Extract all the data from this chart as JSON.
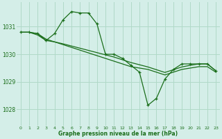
{
  "title": "Graphe pression niveau de la mer (hPa)",
  "background_color": "#d4eee8",
  "grid_color": "#b0d9c8",
  "line_color": "#1a6e1a",
  "x_ticks": [
    0,
    1,
    2,
    3,
    4,
    5,
    6,
    7,
    8,
    9,
    10,
    11,
    12,
    13,
    14,
    15,
    16,
    17,
    18,
    19,
    20,
    21,
    22,
    23
  ],
  "y_ticks": [
    1028,
    1029,
    1030,
    1031
  ],
  "ylim": [
    1027.4,
    1031.9
  ],
  "xlim": [
    -0.5,
    23.5
  ],
  "series_main": [
    1030.8,
    1030.8,
    1030.75,
    1030.5,
    1030.75,
    1031.25,
    1031.55,
    1031.5,
    1031.5,
    1031.1,
    1030.0,
    1030.0,
    1029.85,
    1029.6,
    1029.35,
    1028.15,
    1028.4,
    1029.1,
    1029.45,
    1029.65,
    1029.65,
    1029.65,
    1029.65,
    1029.4
  ],
  "series_smooth1": [
    1030.8,
    1030.8,
    1030.75,
    1030.55,
    1030.45,
    1030.35,
    1030.25,
    1030.15,
    1030.05,
    1029.95,
    1029.85,
    1029.75,
    1029.65,
    1029.55,
    1029.5,
    1029.45,
    1029.35,
    1029.25,
    1029.35,
    1029.45,
    1029.5,
    1029.55,
    1029.55,
    1029.35
  ],
  "series_smooth2": [
    1030.8,
    1030.8,
    1030.7,
    1030.5,
    1030.45,
    1030.38,
    1030.3,
    1030.22,
    1030.14,
    1030.06,
    1029.98,
    1029.9,
    1029.8,
    1029.7,
    1029.62,
    1029.54,
    1029.44,
    1029.34,
    1029.44,
    1029.54,
    1029.6,
    1029.65,
    1029.65,
    1029.4
  ]
}
